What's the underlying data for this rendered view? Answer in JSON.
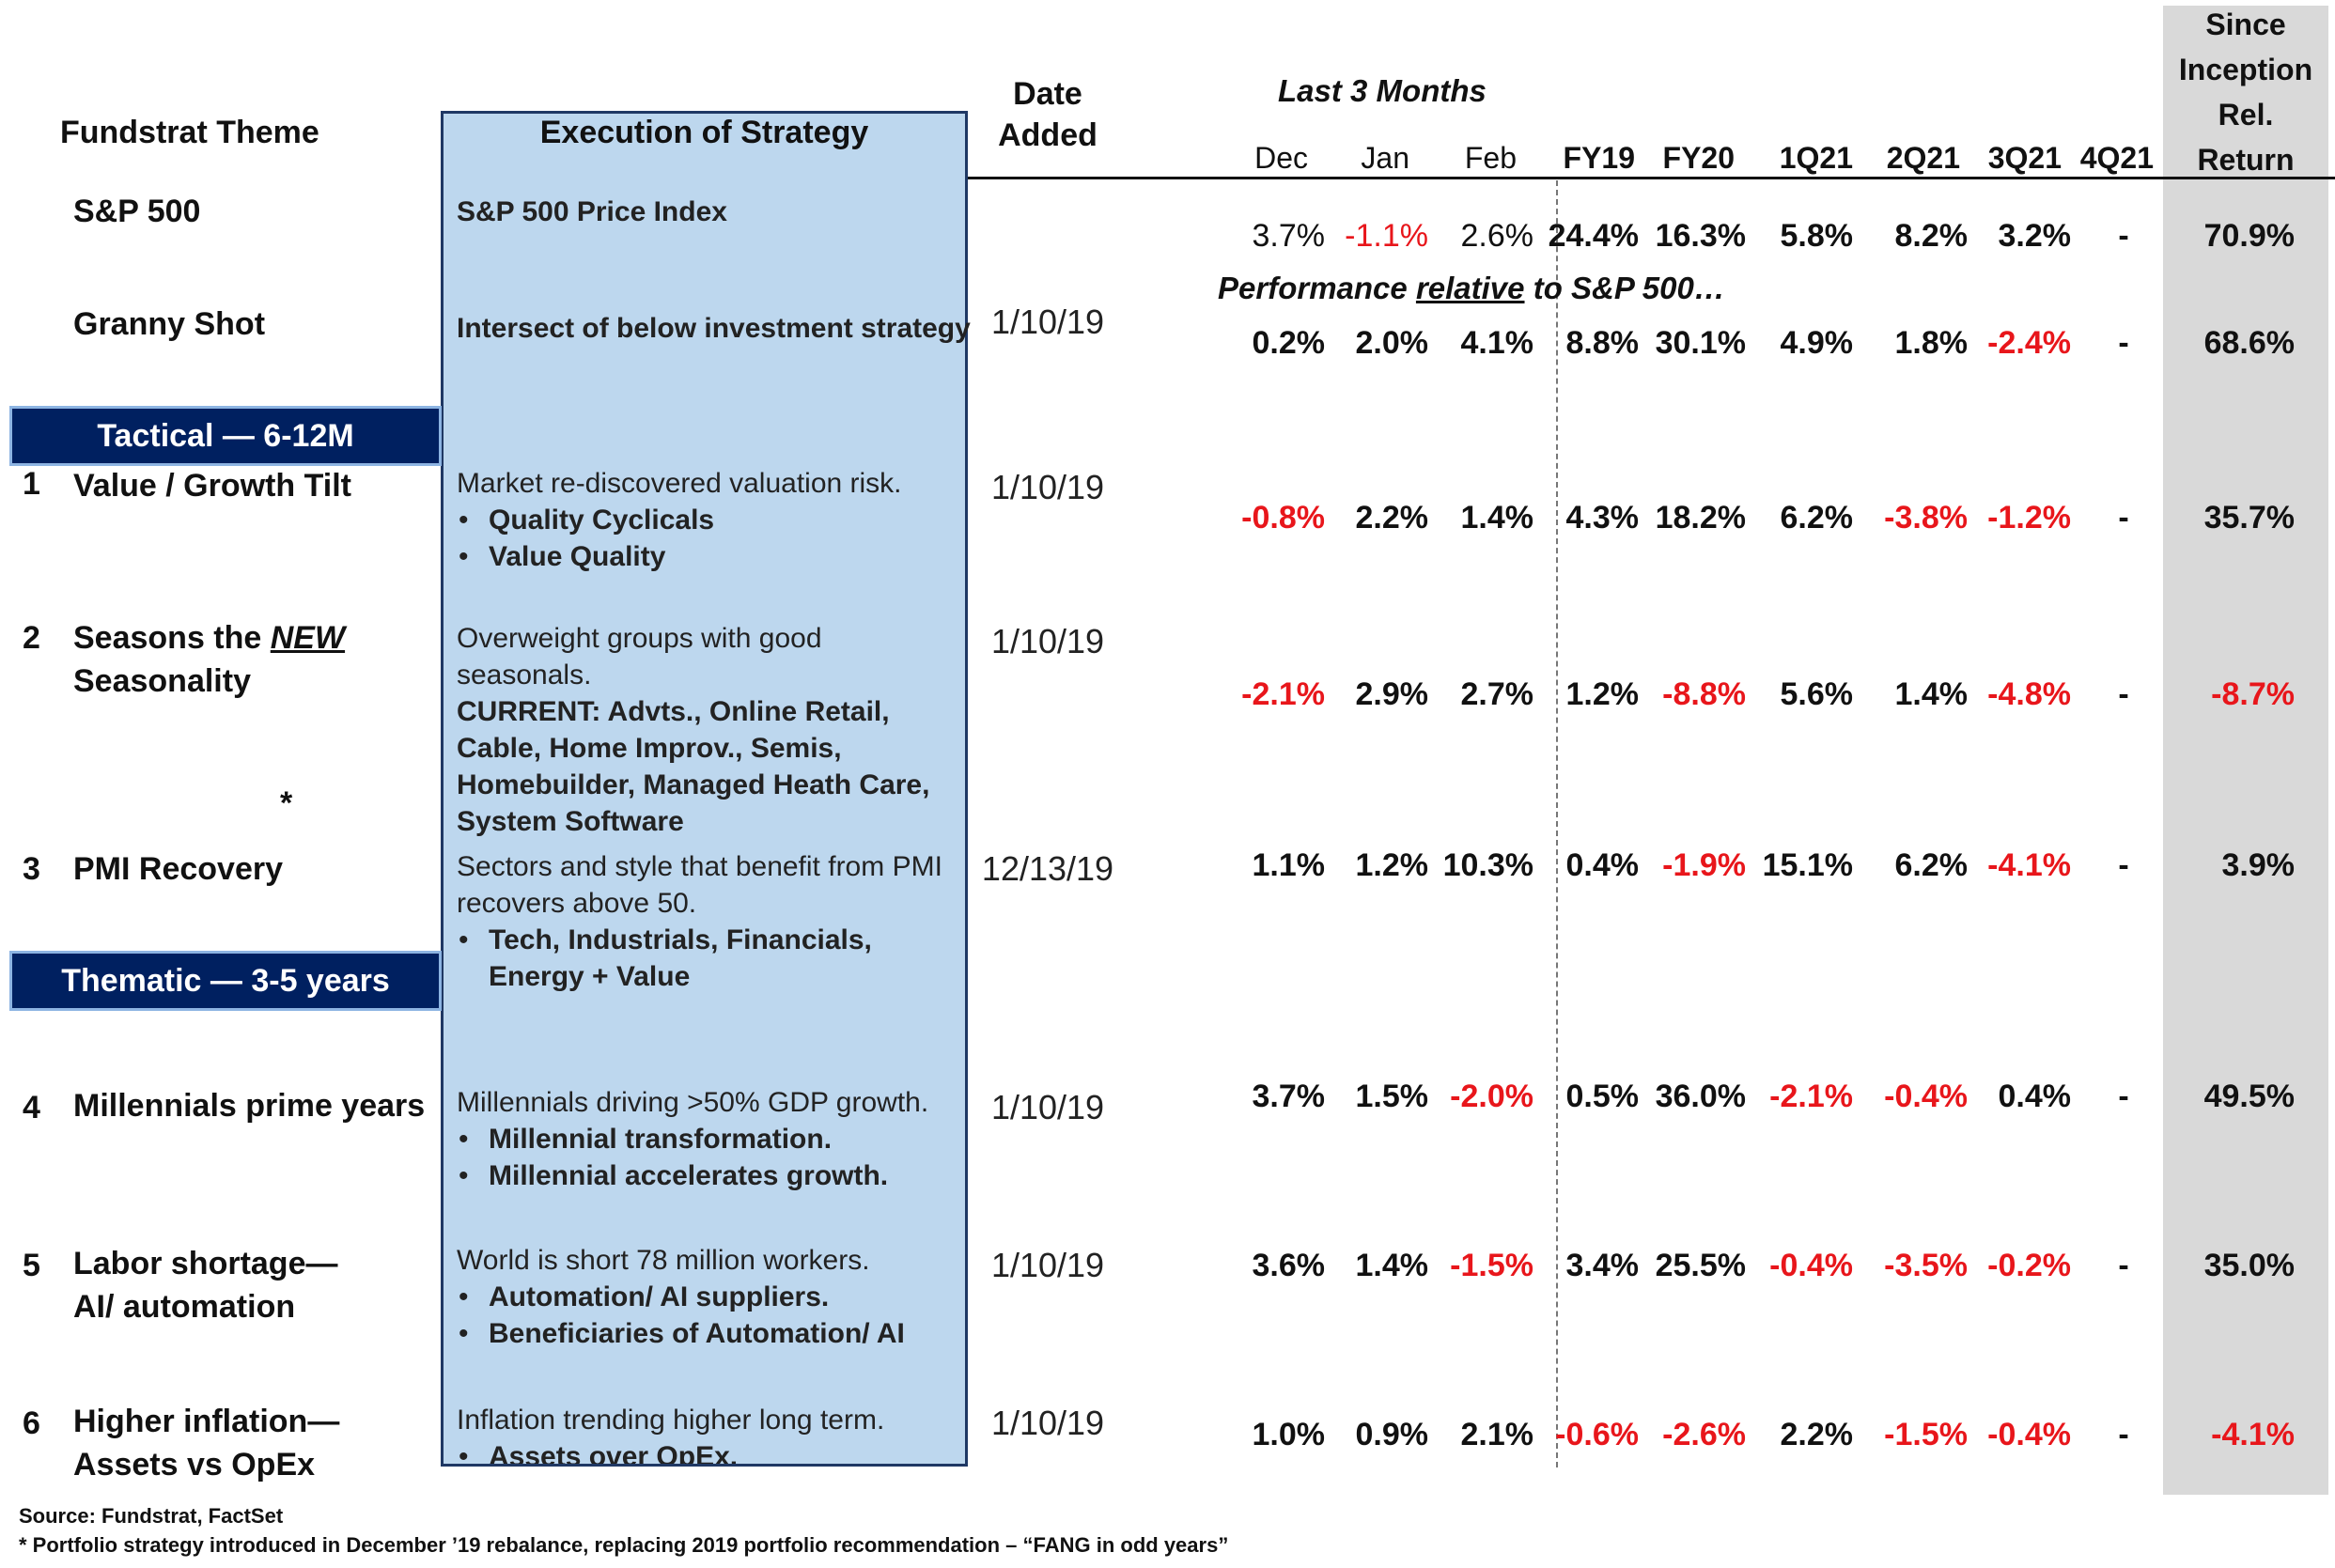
{
  "headers": {
    "theme": "Fundstrat Theme",
    "execution": "Execution of Strategy",
    "date_added": [
      "Date",
      "Added"
    ],
    "last3": "Last 3 Months",
    "periods": [
      "Dec",
      "Jan",
      "Feb",
      "FY19",
      "FY20",
      "1Q21",
      "2Q21",
      "3Q21",
      "4Q21"
    ],
    "since": [
      "Since",
      "Inception",
      "Rel.",
      "Return"
    ]
  },
  "relative_note": {
    "pre": "Performance ",
    "underlined": "relative",
    "post": " to S&P 500…"
  },
  "sections": {
    "tactical": "Tactical — 6-12M",
    "thematic": "Thematic  — 3-5 years"
  },
  "rows": [
    {
      "num": "",
      "theme": [
        "S&P 500"
      ],
      "exec_title": "S&P 500 Price Index",
      "date": "",
      "values": [
        "3.7%",
        "-1.1%",
        "2.6%",
        "24.4%",
        "16.3%",
        "5.8%",
        "8.2%",
        "3.2%",
        "-",
        "70.9%"
      ]
    },
    {
      "num": "",
      "theme": [
        "Granny Shot"
      ],
      "exec_title": "Intersect of below investment strategy",
      "date": "1/10/19",
      "values": [
        "0.2%",
        "2.0%",
        "4.1%",
        "8.8%",
        "30.1%",
        "4.9%",
        "1.8%",
        "-2.4%",
        "-",
        "68.6%"
      ]
    },
    {
      "num": "1",
      "theme": [
        "Value / Growth Tilt"
      ],
      "exec_text": "Market re-discovered valuation risk.",
      "bullets": [
        "Quality Cyclicals",
        "Value Quality"
      ],
      "date": "1/10/19",
      "values": [
        "-0.8%",
        "2.2%",
        "1.4%",
        "4.3%",
        "18.2%",
        "6.2%",
        "-3.8%",
        "-1.2%",
        "-",
        "35.7%"
      ]
    },
    {
      "num": "2",
      "theme": [
        "Seasons the ",
        "NEW",
        "Seasonality"
      ],
      "exec_text": "Overweight groups with good seasonals.",
      "exec_bold": "CURRENT: Advts., Online Retail, Cable, Home Improv., Semis, Homebuilder, Managed Heath Care, System Software",
      "date": "1/10/19",
      "values": [
        "-2.1%",
        "2.9%",
        "2.7%",
        "1.2%",
        "-8.8%",
        "5.6%",
        "1.4%",
        "-4.8%",
        "-",
        "-8.7%"
      ]
    },
    {
      "num": "3",
      "theme": [
        "PMI Recovery"
      ],
      "exec_text": "Sectors and style that benefit from PMI recovers above 50.",
      "bullets": [
        "Tech, Industrials, Financials, Energy + Value"
      ],
      "date": "12/13/19",
      "values": [
        "1.1%",
        "1.2%",
        "10.3%",
        "0.4%",
        "-1.9%",
        "15.1%",
        "6.2%",
        "-4.1%",
        "-",
        "3.9%"
      ]
    },
    {
      "num": "4",
      "theme": [
        "Millennials prime years"
      ],
      "exec_text": "Millennials driving >50% GDP growth.",
      "bullets": [
        "Millennial transformation.",
        "Millennial accelerates growth."
      ],
      "date": "1/10/19",
      "values": [
        "3.7%",
        "1.5%",
        "-2.0%",
        "0.5%",
        "36.0%",
        "-2.1%",
        "-0.4%",
        "0.4%",
        "-",
        "49.5%"
      ]
    },
    {
      "num": "5",
      "theme": [
        "Labor shortage—",
        "AI/ automation"
      ],
      "exec_text": "World is short 78 million workers.",
      "bullets": [
        "Automation/ AI suppliers.",
        "Beneficiaries of Automation/ AI"
      ],
      "date": "1/10/19",
      "values": [
        "3.6%",
        "1.4%",
        "-1.5%",
        "3.4%",
        "25.5%",
        "-0.4%",
        "-3.5%",
        "-0.2%",
        "-",
        "35.0%"
      ]
    },
    {
      "num": "6",
      "theme": [
        "Higher inflation—",
        "Assets vs OpEx"
      ],
      "exec_text": "Inflation trending higher long term.",
      "bullets": [
        "Assets over OpEx."
      ],
      "date": "1/10/19",
      "values": [
        "1.0%",
        "0.9%",
        "2.1%",
        "-0.6%",
        "-2.6%",
        "2.2%",
        "-1.5%",
        "-0.4%",
        "-",
        "-4.1%"
      ]
    }
  ],
  "asterisk": "*",
  "footer": {
    "source": "Source: Fundstrat, FactSet",
    "note": "* Portfolio strategy introduced in December ’19 rebalance, replacing 2019 portfolio recommendation – “FANG in odd years”"
  },
  "colors": {
    "negative": "#e8161b",
    "band": "#002060",
    "box": "#bdd7ee",
    "since_bg": "#d9d9d9"
  }
}
